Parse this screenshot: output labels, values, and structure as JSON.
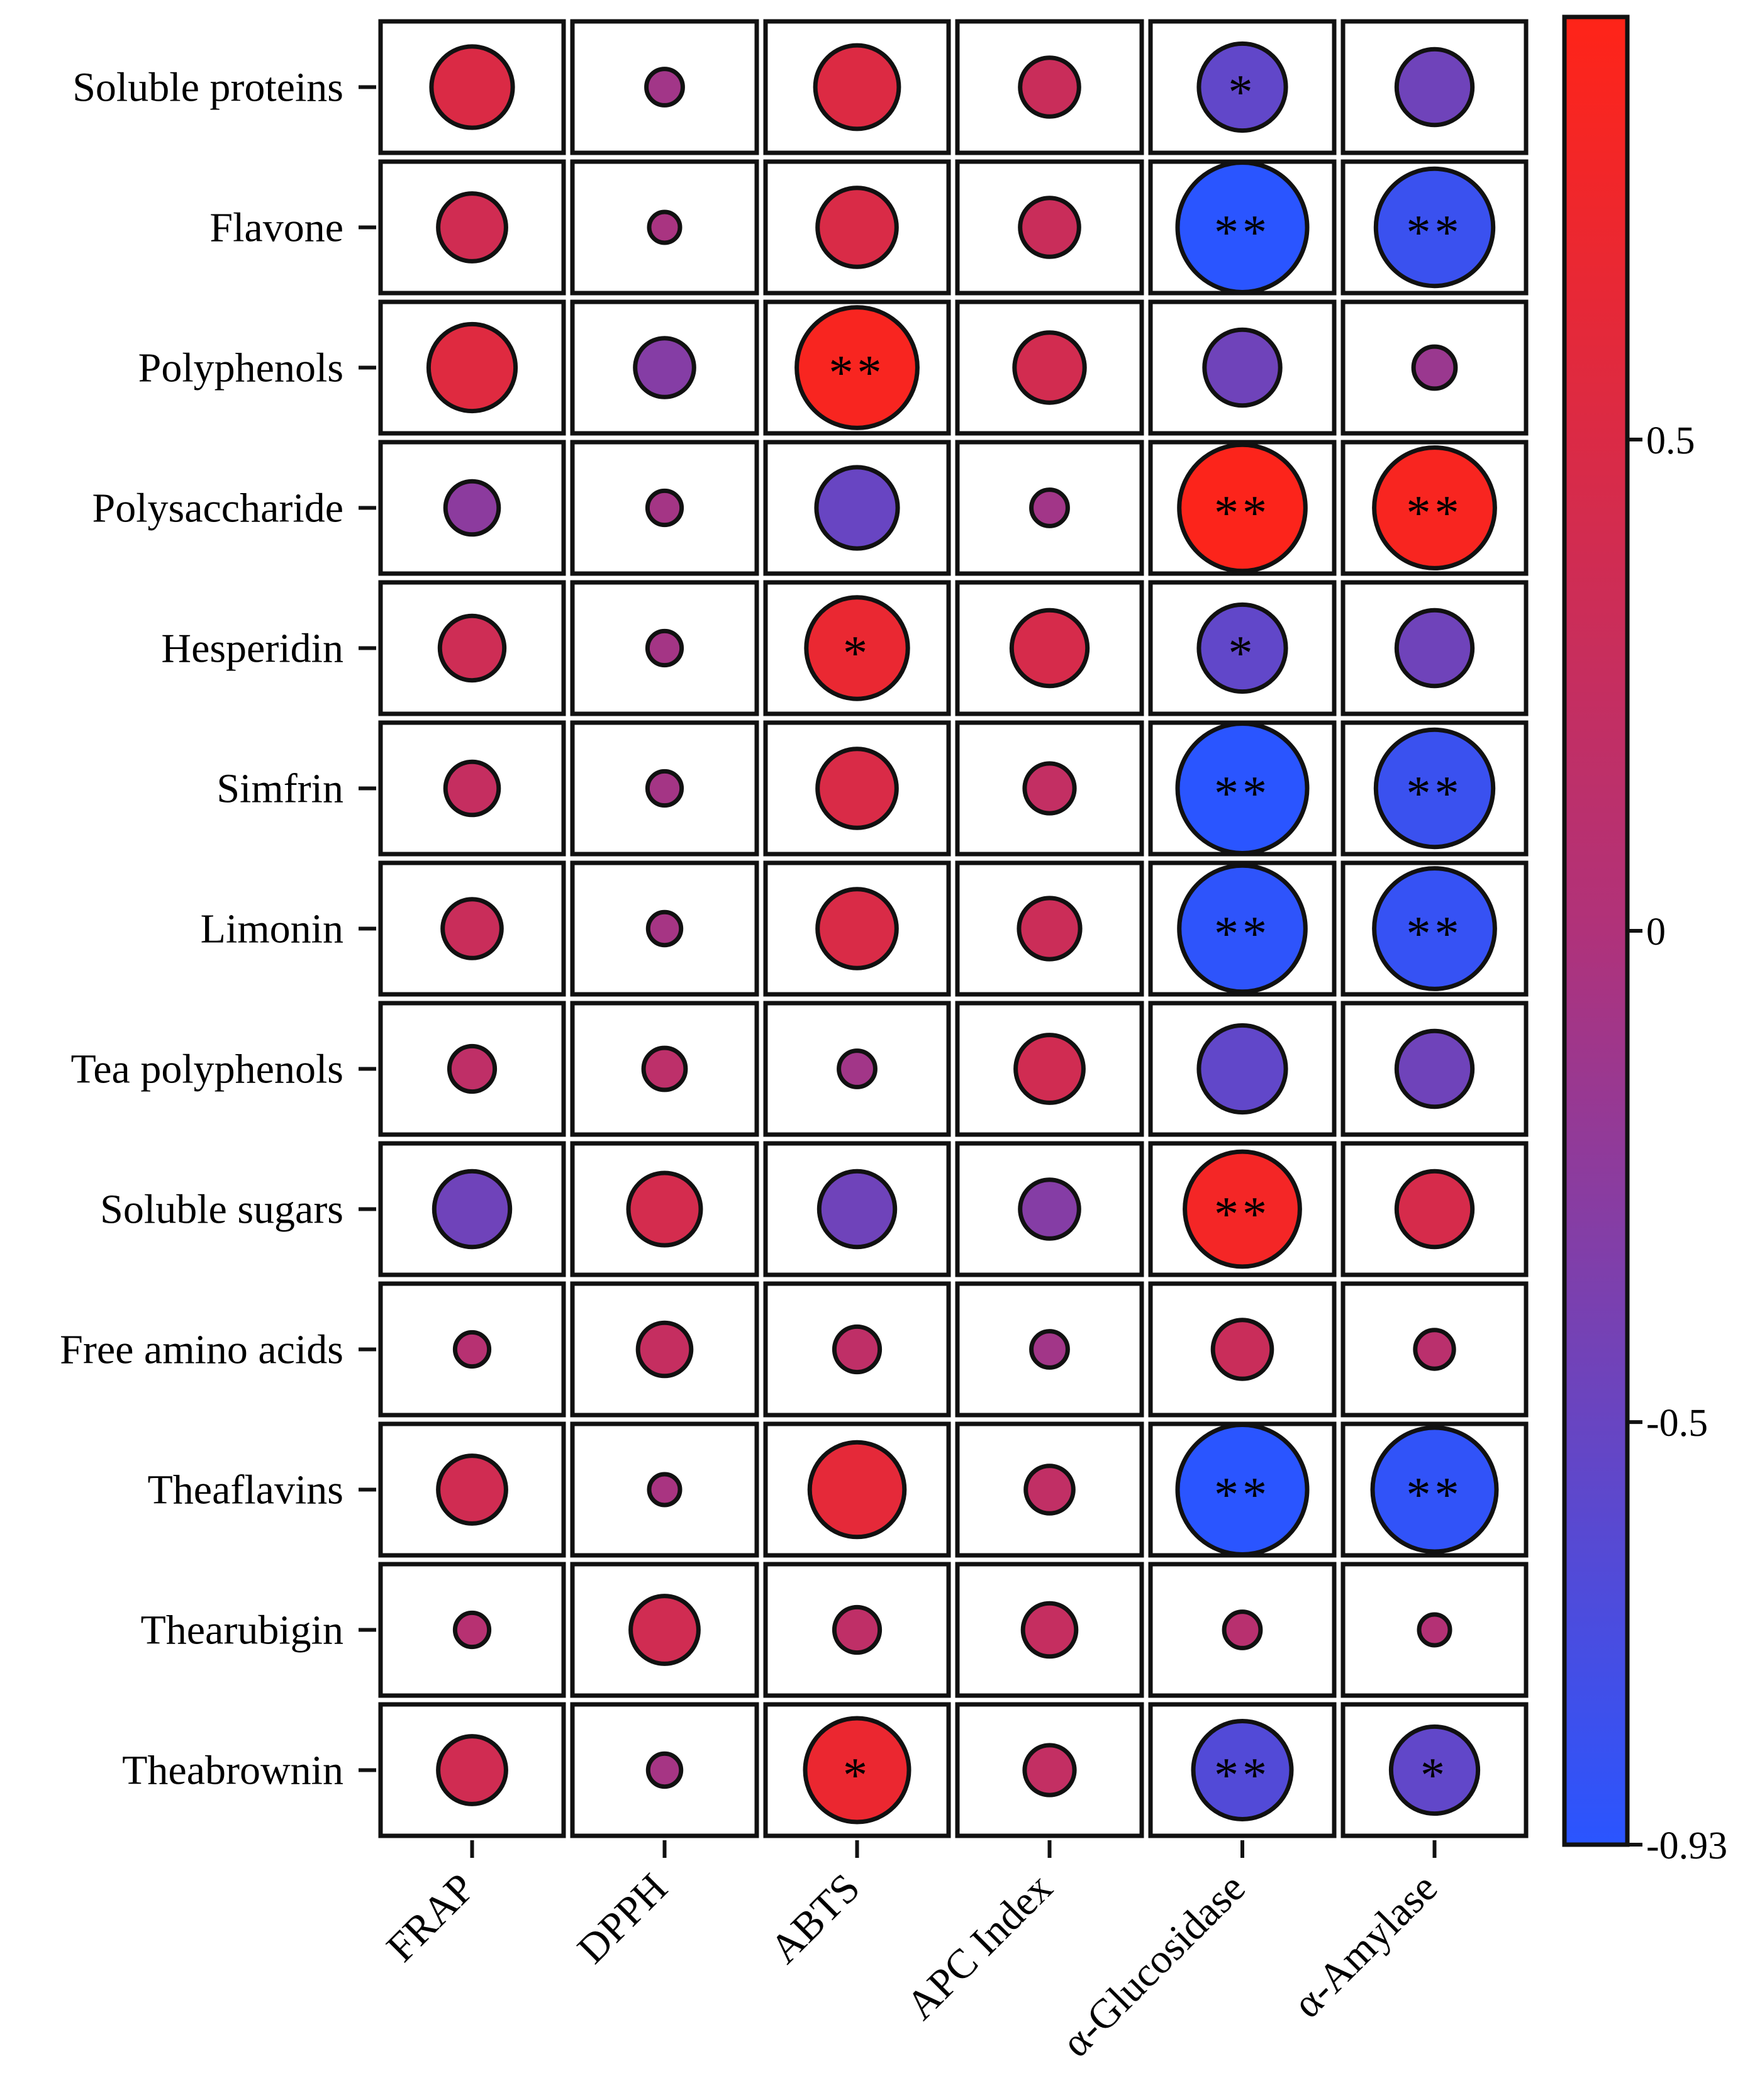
{
  "chart_data": {
    "type": "bubble-correlation-matrix",
    "title": "",
    "rows": [
      "Soluble proteins",
      "Flavone",
      "Polyphenols",
      "Polysaccharide",
      "Hesperidin",
      "Simfrin",
      "Limonin",
      "Tea polyphenols",
      "Soluble sugars",
      "Free amino acids",
      "Theaflavins",
      "Thearubigin",
      "Theabrownin"
    ],
    "columns": [
      "FRAP",
      "DPPH",
      "ABTS",
      "APC Index",
      "α-Glucosidase",
      "α-Amylase"
    ],
    "values": [
      [
        0.5,
        -0.1,
        0.52,
        0.3,
        -0.55,
        -0.45
      ],
      [
        0.38,
        -0.05,
        0.48,
        0.3,
        -0.93,
        -0.82
      ],
      [
        0.55,
        -0.3,
        0.85,
        0.4,
        -0.45,
        -0.15
      ],
      [
        -0.25,
        -0.08,
        -0.5,
        -0.1,
        0.9,
        0.85
      ],
      [
        0.35,
        -0.08,
        0.68,
        0.45,
        -0.55,
        -0.45
      ],
      [
        0.25,
        -0.08,
        0.48,
        0.22,
        -0.93,
        -0.82
      ],
      [
        0.3,
        -0.07,
        0.48,
        0.32,
        -0.9,
        -0.85
      ],
      [
        0.18,
        0.15,
        -0.1,
        0.38,
        -0.55,
        -0.45
      ],
      [
        -0.45,
        0.42,
        -0.45,
        -0.3,
        0.8,
        0.45
      ],
      [
        0.08,
        0.25,
        0.18,
        -0.1,
        0.3,
        0.12
      ],
      [
        0.38,
        -0.05,
        0.62,
        0.2,
        -0.93,
        -0.88
      ],
      [
        0.08,
        0.38,
        0.18,
        0.25,
        0.1,
        0.05
      ],
      [
        0.38,
        -0.07,
        0.7,
        0.22,
        -0.65,
        -0.55
      ]
    ],
    "significance": [
      [
        "",
        "",
        "",
        "",
        "*",
        ""
      ],
      [
        "",
        "",
        "",
        "",
        "**",
        "**"
      ],
      [
        "",
        "",
        "**",
        "",
        "",
        ""
      ],
      [
        "",
        "",
        "",
        "",
        "**",
        "**"
      ],
      [
        "",
        "",
        "*",
        "",
        "*",
        ""
      ],
      [
        "",
        "",
        "",
        "",
        "**",
        "**"
      ],
      [
        "",
        "",
        "",
        "",
        "**",
        "**"
      ],
      [
        "",
        "",
        "",
        "",
        "",
        ""
      ],
      [
        "",
        "",
        "",
        "",
        "**",
        ""
      ],
      [
        "",
        "",
        "",
        "",
        "",
        ""
      ],
      [
        "",
        "",
        "",
        "",
        "**",
        "**"
      ],
      [
        "",
        "",
        "",
        "",
        "",
        ""
      ],
      [
        "",
        "",
        "*",
        "",
        "**",
        "*"
      ]
    ],
    "colorbar": {
      "range": [
        -0.93,
        0.93
      ],
      "ticks": [
        0.5,
        0,
        -0.5,
        -0.93
      ],
      "tick_labels": [
        "0.5",
        "0",
        "-0.5",
        "-0.93"
      ],
      "colors": {
        "low": "#2a55ff",
        "mid": "#b0327a",
        "high": "#ff2418"
      }
    }
  }
}
